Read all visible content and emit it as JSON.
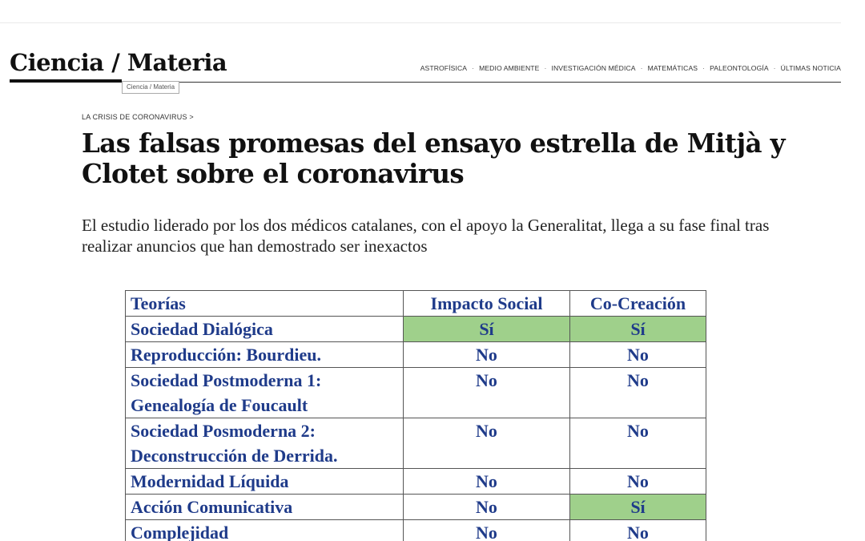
{
  "site": {
    "brand": "Ciencia / Materia",
    "brand_tag": "Ciencia / Materia",
    "nav": [
      "ASTROFÍSICA",
      "MEDIO AMBIENTE",
      "INVESTIGACIÓN MÉDICA",
      "MATEMÁTICAS",
      "PALEONTOLOGÍA",
      "ÚLTIMAS NOTICIA"
    ],
    "nav_separator": "·"
  },
  "article": {
    "kicker": "LA CRISIS DE CORONAVIRUS >",
    "headline": "Las falsas promesas del ensayo estrella de Mitjà y Clotet sobre el coronavirus",
    "subtitle": "El estudio liderado por los dos médicos catalanes, con el apoyo la Generalitat, llega a su fase final tras realizar anuncios que han demostrado ser inexactos"
  },
  "table": {
    "headers": [
      "Teorías",
      "Impacto Social",
      "Co-Creación"
    ],
    "rows": [
      {
        "theory": [
          "Sociedad Dialógica"
        ],
        "impacto": "Sí",
        "cocreacion": "Sí"
      },
      {
        "theory": [
          "Reproducción: Bourdieu."
        ],
        "impacto": "No",
        "cocreacion": "No"
      },
      {
        "theory": [
          "Sociedad Postmoderna 1:",
          "Genealogía de Foucault"
        ],
        "impacto": "No",
        "cocreacion": "No"
      },
      {
        "theory": [
          "Sociedad Posmoderna 2:",
          "Deconstrucción de Derrida."
        ],
        "impacto": "No",
        "cocreacion": "No"
      },
      {
        "theory": [
          "Modernidad Líquida"
        ],
        "impacto": "No",
        "cocreacion": "No"
      },
      {
        "theory": [
          "Acción Comunicativa"
        ],
        "impacto": "No",
        "cocreacion": "Sí"
      },
      {
        "theory": [
          "Complejidad"
        ],
        "impacto": "No",
        "cocreacion": "No"
      }
    ]
  },
  "colors": {
    "highlight_yes": "#9fd08b",
    "table_text": "#1f3b8a"
  }
}
